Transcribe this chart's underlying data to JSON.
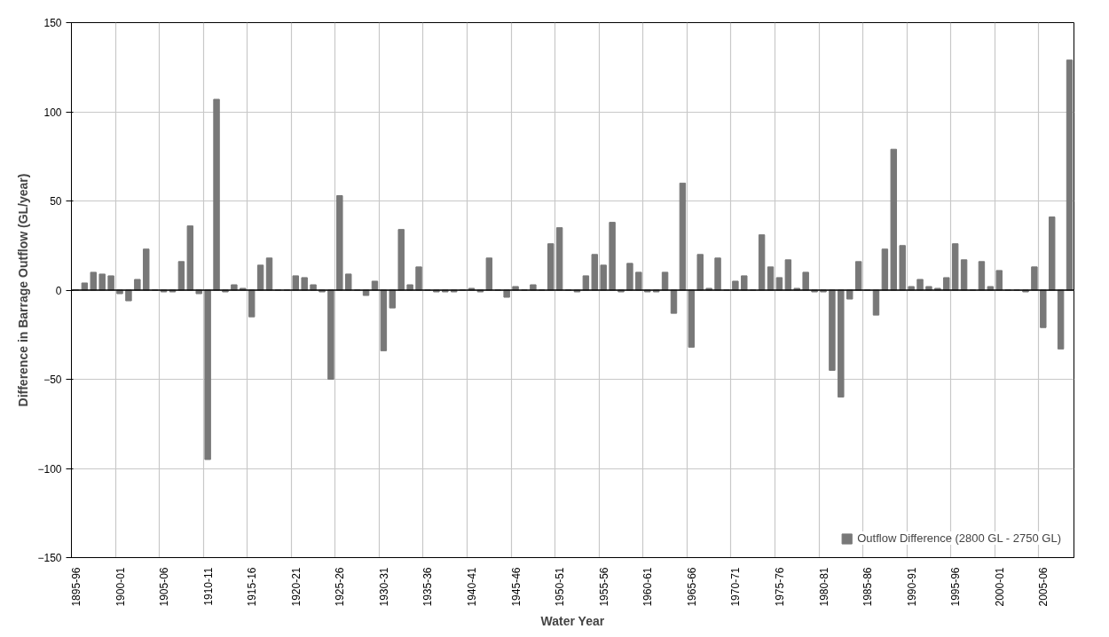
{
  "chart_data": {
    "type": "bar",
    "xlabel": "Water Year",
    "ylabel": "Difference in Barrage Outflow (GL/year)",
    "categories": [
      "1895-96",
      null,
      null,
      null,
      null,
      "1900-01",
      null,
      null,
      null,
      null,
      "1905-06",
      null,
      null,
      null,
      null,
      "1910-11",
      null,
      null,
      null,
      null,
      "1915-16",
      null,
      null,
      null,
      null,
      "1920-21",
      null,
      null,
      null,
      null,
      "1925-26",
      null,
      null,
      null,
      null,
      "1930-31",
      null,
      null,
      null,
      null,
      "1935-36",
      null,
      null,
      null,
      null,
      "1940-41",
      null,
      null,
      null,
      null,
      "1945-46",
      null,
      null,
      null,
      null,
      "1950-51",
      null,
      null,
      null,
      null,
      "1955-56",
      null,
      null,
      null,
      null,
      "1960-61",
      null,
      null,
      null,
      null,
      "1965-66",
      null,
      null,
      null,
      null,
      "1970-71",
      null,
      null,
      null,
      null,
      "1975-76",
      null,
      null,
      null,
      null,
      "1980-81",
      null,
      null,
      null,
      null,
      "1985-86",
      null,
      null,
      null,
      null,
      "1990-91",
      null,
      null,
      null,
      null,
      "1995-96",
      null,
      null,
      null,
      null,
      "2000-01",
      null,
      null,
      null,
      null,
      "2005-06",
      null,
      null,
      null
    ],
    "series": [
      {
        "name": "Outflow Difference (2800 GL - 2750 GL)",
        "color": "#787878",
        "values": [
          0,
          4,
          10,
          9,
          8,
          -2,
          -6,
          6,
          23,
          0,
          -1,
          -1,
          16,
          36,
          -2,
          -95,
          107,
          -1,
          3,
          1,
          -15,
          14,
          18,
          0,
          0,
          8,
          7,
          3,
          -1,
          -50,
          53,
          9,
          0,
          -3,
          5,
          -34,
          -10,
          34,
          3,
          13,
          0,
          -1,
          -1,
          -1,
          0,
          1,
          -1,
          18,
          0,
          -4,
          2,
          0,
          3,
          0,
          26,
          35,
          0,
          -1,
          8,
          20,
          14,
          38,
          -1,
          15,
          10,
          -1,
          -1,
          10,
          -13,
          60,
          -32,
          20,
          1,
          18,
          0,
          5,
          8,
          0,
          31,
          13,
          7,
          17,
          1,
          10,
          -1,
          -1,
          -45,
          -60,
          -5,
          16,
          0,
          -14,
          23,
          79,
          25,
          2,
          6,
          2,
          1,
          7,
          26,
          17,
          0,
          16,
          2,
          11,
          0,
          0,
          -1,
          13,
          -21,
          41,
          -33,
          129
        ]
      }
    ],
    "ylim": [
      -150,
      150
    ],
    "yticks": [
      -150,
      -100,
      -50,
      0,
      50,
      100,
      150
    ],
    "grid": true,
    "legend": "bottom right",
    "ref_lines": [
      {
        "axis": "y",
        "value": 0,
        "color": "#000000"
      }
    ]
  }
}
